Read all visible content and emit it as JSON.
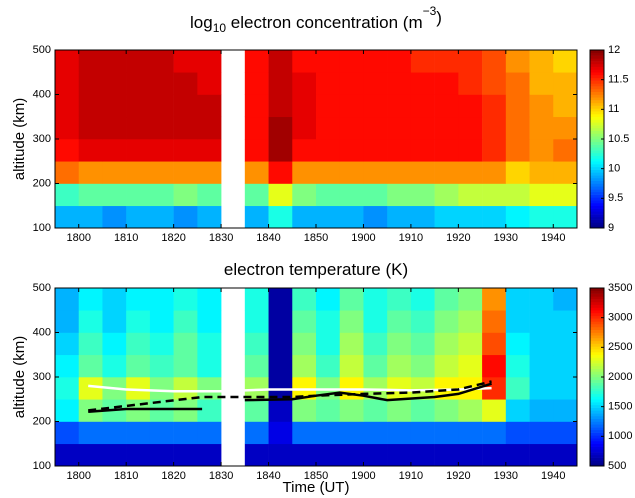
{
  "chart_data": [
    {
      "type": "heatmap",
      "title_parts": [
        "log",
        "10",
        " electron concentration (m",
        "−3",
        ")"
      ],
      "ylabel": "altitude (km)",
      "x": [
        1077.5,
        1082.5,
        1087.5,
        1092.5,
        1097.5,
        1102.5,
        1107.5,
        1112.5,
        1117.5,
        1122.5,
        1127.5,
        1132.5,
        1137.5,
        1142.5,
        1147.5,
        1152.5,
        1157.5,
        1162.5,
        1167.5,
        1172.5,
        1177.5,
        1182.5
      ],
      "y": [
        125,
        175,
        225,
        275,
        325,
        375,
        425,
        475
      ],
      "z": [
        [
          9.9,
          9.9,
          9.8,
          9.9,
          9.9,
          9.8,
          9.9,
          null,
          9.9,
          10.2,
          9.9,
          9.9,
          9.9,
          9.8,
          9.9,
          9.9,
          10.0,
          10.0,
          10.0,
          10.1,
          10.2,
          10.2
        ],
        [
          10.3,
          10.4,
          10.4,
          10.4,
          10.4,
          10.5,
          10.4,
          null,
          10.4,
          10.8,
          10.5,
          10.4,
          10.4,
          10.4,
          10.5,
          10.5,
          10.6,
          10.7,
          10.7,
          10.7,
          10.8,
          10.8
        ],
        [
          11.3,
          11.2,
          11.2,
          11.2,
          11.2,
          11.2,
          11.2,
          null,
          11.2,
          11.6,
          11.2,
          11.2,
          11.2,
          11.2,
          11.2,
          11.2,
          11.2,
          11.2,
          11.2,
          11.0,
          11.1,
          11.1
        ],
        [
          11.6,
          11.7,
          11.7,
          11.7,
          11.7,
          11.7,
          11.7,
          null,
          11.6,
          11.9,
          11.6,
          11.6,
          11.6,
          11.6,
          11.6,
          11.6,
          11.6,
          11.6,
          11.5,
          11.3,
          11.2,
          11.3
        ],
        [
          11.7,
          11.8,
          11.8,
          11.8,
          11.8,
          11.8,
          11.8,
          null,
          11.6,
          11.9,
          11.7,
          11.6,
          11.6,
          11.6,
          11.6,
          11.6,
          11.6,
          11.6,
          11.5,
          11.3,
          11.2,
          11.2
        ],
        [
          11.7,
          11.8,
          11.8,
          11.8,
          11.8,
          11.8,
          11.8,
          null,
          11.6,
          11.8,
          11.7,
          11.6,
          11.6,
          11.6,
          11.6,
          11.6,
          11.6,
          11.6,
          11.5,
          11.3,
          11.2,
          11.1
        ],
        [
          11.7,
          11.8,
          11.8,
          11.8,
          11.8,
          11.8,
          11.7,
          null,
          11.6,
          11.8,
          11.7,
          11.6,
          11.6,
          11.6,
          11.6,
          11.6,
          11.6,
          11.5,
          11.4,
          11.3,
          11.1,
          11.1
        ],
        [
          11.7,
          11.8,
          11.8,
          11.8,
          11.8,
          11.7,
          11.7,
          null,
          11.6,
          11.8,
          11.6,
          11.6,
          11.6,
          11.6,
          11.6,
          11.5,
          11.5,
          11.5,
          11.4,
          11.2,
          11.1,
          11.0
        ]
      ],
      "xlim": [
        1075,
        1185
      ],
      "xticks": [
        {
          "value": 1080,
          "label": "1800"
        },
        {
          "value": 1090,
          "label": "1810"
        },
        {
          "value": 1100,
          "label": "1820"
        },
        {
          "value": 1110,
          "label": "1830"
        },
        {
          "value": 1120,
          "label": "1840"
        },
        {
          "value": 1130,
          "label": "1850"
        },
        {
          "value": 1140,
          "label": "1900"
        },
        {
          "value": 1150,
          "label": "1910"
        },
        {
          "value": 1160,
          "label": "1920"
        },
        {
          "value": 1170,
          "label": "1930"
        },
        {
          "value": 1180,
          "label": "1940"
        }
      ],
      "ylim": [
        100,
        500
      ],
      "yticks": [
        100,
        200,
        300,
        400,
        500
      ],
      "colormap": "jet",
      "clim": [
        9,
        12
      ],
      "cticks": [
        9,
        9.5,
        10,
        10.5,
        11,
        11.5,
        12
      ],
      "series": []
    },
    {
      "type": "heatmap",
      "title_parts": [
        "electron temperature (K)"
      ],
      "ylabel": "altitude (km)",
      "xlabel": "Time (UT)",
      "x": [
        1077.5,
        1082.5,
        1087.5,
        1092.5,
        1097.5,
        1102.5,
        1107.5,
        1112.5,
        1117.5,
        1122.5,
        1127.5,
        1132.5,
        1137.5,
        1142.5,
        1147.5,
        1152.5,
        1157.5,
        1162.5,
        1167.5,
        1172.5,
        1177.5,
        1182.5
      ],
      "y": [
        125,
        175,
        225,
        275,
        325,
        375,
        425,
        475
      ],
      "z": [
        [
          700,
          700,
          700,
          700,
          700,
          700,
          700,
          null,
          700,
          700,
          700,
          700,
          700,
          700,
          700,
          700,
          700,
          700,
          700,
          700,
          700,
          700
        ],
        [
          1100,
          1200,
          1200,
          1200,
          1200,
          1200,
          1200,
          null,
          1200,
          800,
          1200,
          1200,
          1200,
          1200,
          1200,
          1200,
          1200,
          1200,
          1200,
          1100,
          1100,
          1100
        ],
        [
          1600,
          2000,
          1900,
          2000,
          1900,
          2000,
          1800,
          null,
          1900,
          700,
          2000,
          1900,
          2000,
          1900,
          2000,
          1900,
          2000,
          2100,
          2300,
          1500,
          1400,
          1400
        ],
        [
          1700,
          2300,
          2000,
          2300,
          2000,
          2200,
          2000,
          null,
          2100,
          600,
          2400,
          2000,
          2400,
          2100,
          2300,
          2200,
          2400,
          2400,
          3000,
          1800,
          1500,
          1500
        ],
        [
          1600,
          1900,
          1700,
          1900,
          1800,
          1900,
          1700,
          null,
          1900,
          600,
          2100,
          1800,
          2200,
          1900,
          2100,
          2000,
          2200,
          2300,
          3100,
          1700,
          1500,
          1500
        ],
        [
          1500,
          1800,
          1600,
          1800,
          1700,
          1900,
          1700,
          null,
          1800,
          600,
          2000,
          1700,
          2100,
          1800,
          2000,
          1900,
          2100,
          2200,
          2900,
          1600,
          1500,
          1500
        ],
        [
          1400,
          1700,
          1500,
          1700,
          1600,
          1800,
          1600,
          null,
          1700,
          600,
          1900,
          1700,
          2000,
          1700,
          1900,
          1800,
          2000,
          2100,
          2800,
          1500,
          1500,
          1500
        ],
        [
          1400,
          1600,
          1500,
          1600,
          1600,
          1700,
          1600,
          null,
          1700,
          600,
          1800,
          1600,
          1900,
          1700,
          1800,
          1700,
          1900,
          2000,
          2700,
          1500,
          1500,
          1400
        ]
      ],
      "xlim": [
        1075,
        1185
      ],
      "xticks": [
        {
          "value": 1080,
          "label": "1800"
        },
        {
          "value": 1090,
          "label": "1810"
        },
        {
          "value": 1100,
          "label": "1820"
        },
        {
          "value": 1110,
          "label": "1830"
        },
        {
          "value": 1120,
          "label": "1840"
        },
        {
          "value": 1130,
          "label": "1850"
        },
        {
          "value": 1140,
          "label": "1900"
        },
        {
          "value": 1150,
          "label": "1910"
        },
        {
          "value": 1160,
          "label": "1920"
        },
        {
          "value": 1170,
          "label": "1930"
        },
        {
          "value": 1180,
          "label": "1940"
        }
      ],
      "ylim": [
        100,
        500
      ],
      "yticks": [
        100,
        200,
        300,
        400,
        500
      ],
      "colormap": "jet",
      "clim": [
        500,
        3500
      ],
      "cticks": [
        500,
        1000,
        1500,
        2000,
        2500,
        3000,
        3500
      ],
      "series": [
        {
          "color": "#ffffff",
          "dash": false,
          "x": [
            1082,
            1090,
            1100,
            1110,
            1120,
            1130,
            1140,
            1150,
            1160,
            1167
          ],
          "y": [
            280,
            272,
            268,
            268,
            272,
            272,
            272,
            270,
            272,
            275
          ]
        },
        {
          "color": "#000000",
          "dash": true,
          "x": [
            1082,
            1106,
            1115,
            1125,
            1130,
            1140,
            1150,
            1160,
            1167
          ],
          "y": [
            225,
            255,
            255,
            255,
            258,
            262,
            265,
            272,
            290
          ]
        },
        {
          "color": "#000000",
          "dash": false,
          "x": [
            1082,
            1090,
            1100,
            1106,
            1112,
            1115,
            1125,
            1130,
            1135,
            1140,
            1145,
            1155,
            1160,
            1167
          ],
          "y": [
            222,
            228,
            228,
            228,
            null,
            248,
            250,
            258,
            265,
            258,
            248,
            255,
            262,
            285
          ]
        }
      ]
    }
  ]
}
